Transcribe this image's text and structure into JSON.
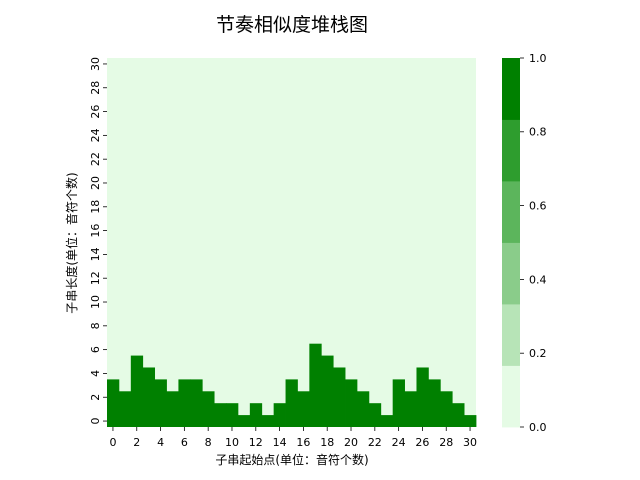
{
  "chart_data": {
    "type": "heatmap",
    "title": "节奏相似度堆栈图",
    "xlabel": "子串起始点(单位：音符个数)",
    "ylabel": "子串长度(单位：音符个数)",
    "x_ticks": [
      "0",
      "2",
      "4",
      "6",
      "8",
      "10",
      "12",
      "14",
      "16",
      "18",
      "20",
      "22",
      "24",
      "26",
      "28",
      "30"
    ],
    "y_ticks": [
      "0",
      "2",
      "4",
      "6",
      "8",
      "10",
      "12",
      "14",
      "16",
      "18",
      "20",
      "22",
      "24",
      "26",
      "28",
      "30"
    ],
    "n_cols": 31,
    "n_rows": 31,
    "column_heights": [
      4,
      3,
      6,
      5,
      4,
      3,
      4,
      4,
      3,
      2,
      2,
      1,
      2,
      1,
      2,
      4,
      3,
      7,
      6,
      5,
      4,
      3,
      2,
      1,
      4,
      3,
      5,
      4,
      3,
      2,
      1
    ],
    "fill_value": 1.0,
    "background_value": 0.0,
    "colorbar": {
      "min": 0.0,
      "max": 1.0,
      "ticks": [
        "0.0",
        "0.2",
        "0.4",
        "0.6",
        "0.8",
        "1.0"
      ],
      "colors": [
        "#e5fbe5",
        "#b7e4b7",
        "#8acc8a",
        "#5cb55c",
        "#2e9d2e",
        "#008000"
      ]
    },
    "grid": false,
    "legend": "colorbar-right"
  }
}
